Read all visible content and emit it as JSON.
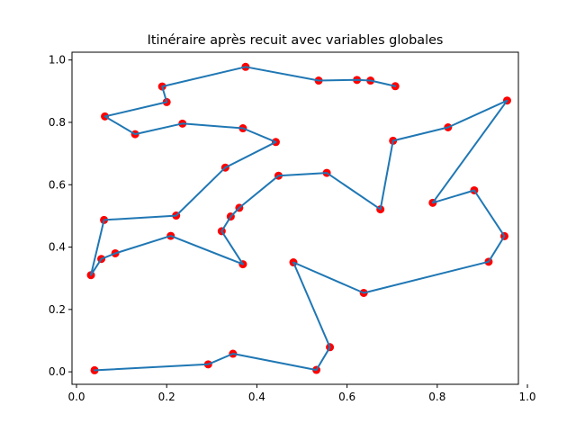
{
  "chart_data": {
    "type": "line",
    "title": "Itinéraire après recuit avec variables globales",
    "xlabel": "",
    "ylabel": "",
    "xlim": [
      -0.01,
      0.98
    ],
    "ylim": [
      -0.04,
      1.025
    ],
    "x_ticks": [
      0.0,
      0.2,
      0.4,
      0.6,
      0.8,
      1.0
    ],
    "x_tick_labels": [
      "0.0",
      "0.2",
      "0.4",
      "0.6",
      "0.8",
      "1.0"
    ],
    "y_ticks": [
      0.0,
      0.2,
      0.4,
      0.6,
      0.8,
      1.0
    ],
    "y_tick_labels": [
      "0.0",
      "0.2",
      "0.4",
      "0.6",
      "0.8",
      "1.0"
    ],
    "grid": false,
    "line_color": "#1f77b4",
    "marker_color": "#ff0000",
    "route": [
      [
        0.04,
        0.005
      ],
      [
        0.292,
        0.024
      ],
      [
        0.347,
        0.058
      ],
      [
        0.532,
        0.006
      ],
      [
        0.562,
        0.079
      ],
      [
        0.481,
        0.351
      ],
      [
        0.637,
        0.253
      ],
      [
        0.914,
        0.353
      ],
      [
        0.949,
        0.435
      ],
      [
        0.882,
        0.582
      ],
      [
        0.79,
        0.542
      ],
      [
        0.955,
        0.87
      ],
      [
        0.824,
        0.784
      ],
      [
        0.702,
        0.741
      ],
      [
        0.674,
        0.521
      ],
      [
        0.555,
        0.638
      ],
      [
        0.448,
        0.629
      ],
      [
        0.361,
        0.526
      ],
      [
        0.342,
        0.498
      ],
      [
        0.322,
        0.451
      ],
      [
        0.369,
        0.345
      ],
      [
        0.209,
        0.436
      ],
      [
        0.086,
        0.38
      ],
      [
        0.055,
        0.362
      ],
      [
        0.032,
        0.31
      ],
      [
        0.061,
        0.487
      ],
      [
        0.221,
        0.501
      ],
      [
        0.33,
        0.655
      ],
      [
        0.442,
        0.737
      ],
      [
        0.369,
        0.781
      ],
      [
        0.235,
        0.796
      ],
      [
        0.13,
        0.762
      ],
      [
        0.063,
        0.819
      ],
      [
        0.2,
        0.865
      ],
      [
        0.19,
        0.915
      ],
      [
        0.375,
        0.978
      ],
      [
        0.537,
        0.934
      ],
      [
        0.622,
        0.936
      ],
      [
        0.652,
        0.934
      ],
      [
        0.707,
        0.916
      ]
    ]
  }
}
